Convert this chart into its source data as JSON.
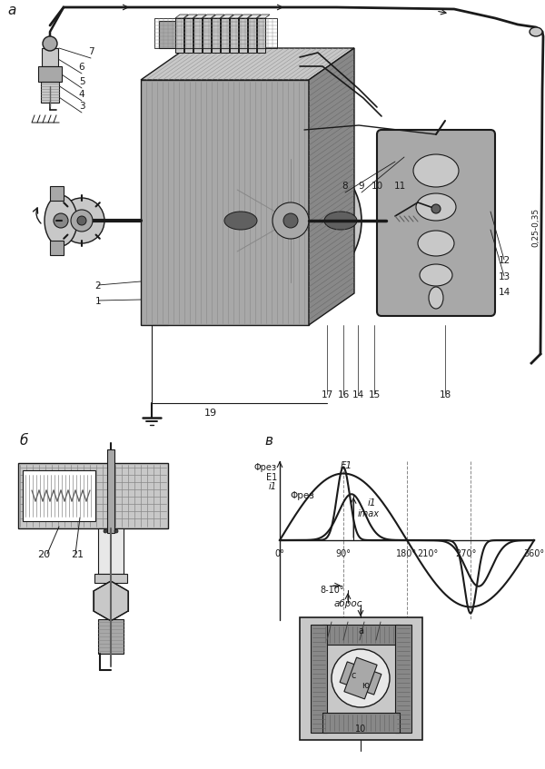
{
  "bg_color": "#f5f5f0",
  "lc": "#1a1a1a",
  "gray1": "#e8e8e8",
  "gray2": "#c8c8c8",
  "gray3": "#a8a8a8",
  "gray4": "#888888",
  "gray5": "#606060",
  "gray6": "#404040",
  "white": "#ffffff",
  "labels": {
    "a_label": "а",
    "b_label": "б",
    "v_label": "в",
    "phi_res": "Φрез",
    "E1": "E1",
    "i1": "i1",
    "i_max": "imax",
    "deg0": "0°",
    "deg90": "90°",
    "deg180": "180°",
    "deg210": "210°",
    "deg360": "360°",
    "deg8_10": "8-10°",
    "abris": "аброс",
    "n1": "1",
    "n2": "2",
    "n3": "3",
    "n4": "4",
    "n5": "5",
    "n6": "6",
    "n7": "7",
    "n8": "8",
    "n9": "9",
    "n10": "10",
    "n11": "11",
    "n12": "12",
    "n13": "13",
    "n14": "14",
    "n15": "15",
    "n16": "16",
    "n17": "17",
    "n18": "18",
    "n19": "19",
    "n20": "20",
    "n21": "21",
    "dim": "0,25-0,35",
    "label_c": "с",
    "label_yu": "ю",
    "label_a2": "а",
    "label_10": "10"
  }
}
